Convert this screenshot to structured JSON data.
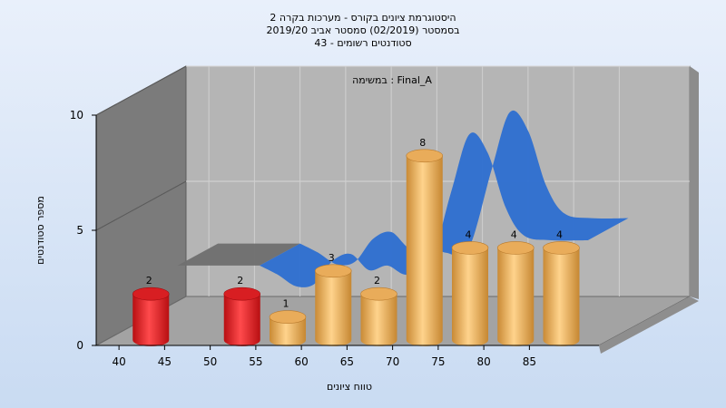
{
  "chart_data": {
    "type": "bar",
    "title_lines": [
      "היסטוגרמת ציונים בקורס - מערכות בקרה 2",
      "בסמסטר  (02/2019)  סמסטר אביב 2019/20",
      "סטודנטים רשומים - 43"
    ],
    "subtitle": "במשימה : Final_A",
    "xlabel": "טווח ציונים",
    "ylabel": "מספר סטודנטים",
    "x_ticks": [
      "40",
      "45",
      "50",
      "55",
      "60",
      "65",
      "70",
      "75",
      "80",
      "85"
    ],
    "y_ticks": [
      "0",
      "5",
      "10"
    ],
    "ylim": [
      0,
      10
    ],
    "bars": [
      {
        "center": 42.5,
        "value": 2,
        "label": "2",
        "color": "#e8262a"
      },
      {
        "center": 52.5,
        "value": 2,
        "label": "2",
        "color": "#e8262a"
      },
      {
        "center": 57.5,
        "value": 1,
        "label": "1",
        "color": "#e0a04d"
      },
      {
        "center": 62.5,
        "value": 3,
        "label": "3",
        "color": "#e0a04d"
      },
      {
        "center": 67.5,
        "value": 2,
        "label": "2",
        "color": "#e0a04d"
      },
      {
        "center": 72.5,
        "value": 8,
        "label": "8",
        "color": "#e0a04d"
      },
      {
        "center": 77.5,
        "value": 4,
        "label": "4",
        "color": "#e0a04d"
      },
      {
        "center": 82.5,
        "value": 4,
        "label": "4",
        "color": "#e0a04d"
      },
      {
        "center": 87.5,
        "value": 4,
        "label": "4",
        "color": "#e0a04d"
      }
    ],
    "curve": [
      {
        "x": 41,
        "y": 2.3
      },
      {
        "x": 46,
        "y": 2.3
      },
      {
        "x": 50,
        "y": 2.3
      },
      {
        "x": 52,
        "y": 1.9
      },
      {
        "x": 54,
        "y": 1.4
      },
      {
        "x": 56,
        "y": 1.5
      },
      {
        "x": 58,
        "y": 2.5
      },
      {
        "x": 60,
        "y": 2.8
      },
      {
        "x": 62,
        "y": 2.1
      },
      {
        "x": 64,
        "y": 2.3
      },
      {
        "x": 66,
        "y": 1.9
      },
      {
        "x": 68.5,
        "y": 2.1
      },
      {
        "x": 71,
        "y": 5.5
      },
      {
        "x": 73,
        "y": 8.0
      },
      {
        "x": 75,
        "y": 7.2
      },
      {
        "x": 77,
        "y": 4.8
      },
      {
        "x": 79,
        "y": 3.6
      },
      {
        "x": 82,
        "y": 3.4
      },
      {
        "x": 86,
        "y": 3.4
      }
    ],
    "curve_colors": {
      "inactive": "#6f6f6f",
      "active": "#2f6fd0"
    },
    "grid": true,
    "legend": "none"
  }
}
